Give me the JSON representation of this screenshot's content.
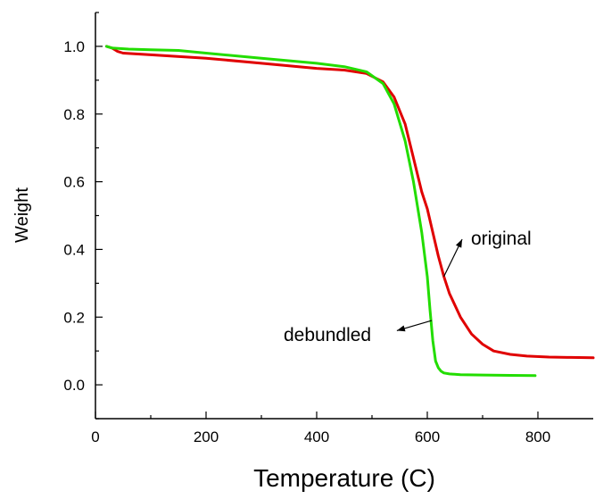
{
  "chart_data": {
    "type": "line",
    "title": "",
    "xlabel": "Temperature (C)",
    "ylabel": "Weight",
    "xlim": [
      0,
      900
    ],
    "ylim": [
      -0.1,
      1.1
    ],
    "xticks": [
      0,
      200,
      400,
      600,
      800
    ],
    "xtick_labels": [
      "0",
      "200",
      "400",
      "600",
      "800"
    ],
    "yticks": [
      0.0,
      0.2,
      0.4,
      0.6,
      0.8,
      1.0
    ],
    "ytick_labels": [
      "0.0",
      "0.2",
      "0.4",
      "0.6",
      "0.8",
      "1.0"
    ],
    "grid": false,
    "series": [
      {
        "color": "#e00000",
        "x": [
          20,
          30,
          40,
          50,
          100,
          200,
          300,
          400,
          450,
          490,
          520,
          540,
          560,
          575,
          590,
          600,
          610,
          620,
          630,
          640,
          660,
          680,
          700,
          720,
          750,
          780,
          820,
          860,
          900
        ],
        "y": [
          1.0,
          0.995,
          0.985,
          0.98,
          0.975,
          0.965,
          0.95,
          0.935,
          0.93,
          0.92,
          0.895,
          0.85,
          0.77,
          0.67,
          0.57,
          0.52,
          0.45,
          0.38,
          0.32,
          0.27,
          0.2,
          0.15,
          0.12,
          0.1,
          0.09,
          0.085,
          0.082,
          0.081,
          0.08
        ]
      },
      {
        "color": "#22dd00",
        "x": [
          20,
          30,
          60,
          100,
          150,
          200,
          300,
          400,
          450,
          490,
          520,
          540,
          560,
          575,
          590,
          600,
          605,
          610,
          615,
          620,
          625,
          630,
          640,
          660,
          700,
          750,
          795
        ],
        "y": [
          1.0,
          0.995,
          0.992,
          0.99,
          0.988,
          0.98,
          0.965,
          0.95,
          0.94,
          0.925,
          0.89,
          0.83,
          0.72,
          0.6,
          0.45,
          0.32,
          0.22,
          0.13,
          0.07,
          0.05,
          0.04,
          0.035,
          0.032,
          0.03,
          0.029,
          0.028,
          0.027
        ]
      }
    ],
    "annotations": [
      {
        "text": "original",
        "arrow_from": [
          663,
          0.43
        ],
        "arrow_to": [
          630,
          0.32
        ]
      },
      {
        "text": "debundled",
        "arrow_from": [
          545,
          0.16
        ],
        "arrow_to": [
          608,
          0.19
        ]
      }
    ]
  }
}
